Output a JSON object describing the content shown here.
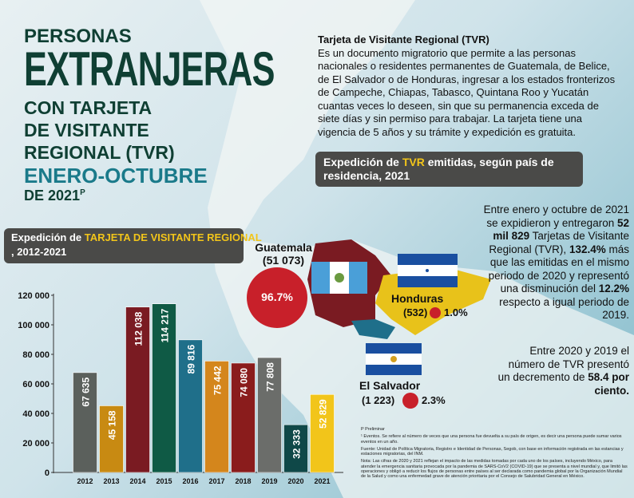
{
  "header": {
    "lines": [
      "PERSONAS",
      "EXTRANJERAS",
      "CON TARJETA",
      "DE VISITANTE",
      "REGIONAL (TVR)",
      "ENERO-OCTUBRE",
      "DE 2021"
    ],
    "superscript": "P"
  },
  "description": {
    "heading": "Tarjeta de Visitante Regional (TVR)",
    "text": "Es un documento migratorio que permite a las personas nacionales o residentes permanentes de Guatemala, de Belice, de El Salvador o de Honduras, ingresar a los estados fronterizos de Campeche, Chiapas, Tabasco, Quintana Roo y Yucatán cuantas veces lo deseen, sin que su permanencia exceda de siete días y sin permiso para trabajar. La tarjeta tiene una vigencia de 5 años y su trámite y expedición es gratuita."
  },
  "country_box": {
    "parts": [
      "Expedición de ",
      "TVR",
      " emitidas, según país de residencia, 2021"
    ]
  },
  "countries": [
    {
      "name": "Guatemala",
      "count": "(51 073)",
      "percent": "96.7%"
    },
    {
      "name": "Honduras",
      "count": "(532)",
      "percent": "1.0%"
    },
    {
      "name": "El Salvador",
      "count": "(1 223)",
      "percent": "2.3%"
    }
  ],
  "stats": {
    "p1": [
      "Entre enero y octubre de 2021 se expidieron y entregaron ",
      "52 mil 829",
      " Tarjetas de Visitante Regional (TVR), ",
      "132.4%",
      " más que las emitidas en el mismo periodo de 2020 y representó una disminución del ",
      "12.2%",
      " respecto a igual periodo de 2019."
    ],
    "p2": [
      "Entre 2020 y 2019 el número de TVR presentó un decremento de ",
      "58.4 por ciento."
    ]
  },
  "footnotes": [
    "P Preliminar",
    "¹ Eventos. Se refiere al número de veces que una persona fue devuelta a su país de origen, es decir una persona puede sumar varios eventos en un año.",
    "Fuente: Unidad de Política Migratoria, Registro e Identidad de Personas, Segob, con base en información registrada en las estancias y estaciones migratorias, del INM.",
    "Nota: Las cifras de 2020 y 2021 reflejan el impacto de las medidas tomadas por cada uno de los países, incluyendo México, para atender la emergencia sanitaria provocada por la pandemia de SARS-CoV2 (COVID-19) que se presenta a nivel mundial y, que limitó las operaciones y obligó a reducir los flujos de personas entre países al ser declarada como pandemia global por la Organización Mundial de la Salud y como una enfermedad grave de atención prioritaria por el Consejo de Salubridad General en México."
  ],
  "chart_data": {
    "type": "bar",
    "title_parts": [
      "Expedición de ",
      "TARJETA DE VISITANTE REGIONAL",
      ", 2012-2021"
    ],
    "categories": [
      "2012",
      "2013",
      "2014",
      "2015",
      "2016",
      "2017",
      "2018",
      "2019",
      "2020",
      "2021"
    ],
    "values": [
      67635,
      45158,
      112038,
      114217,
      89816,
      75442,
      74080,
      77808,
      32333,
      52829
    ],
    "value_labels": [
      "67 635",
      "45 158",
      "112 038",
      "114 217",
      "89 816",
      "75 442",
      "74 080",
      "77 808",
      "32 333",
      "52 829"
    ],
    "colors": [
      "#5b605c",
      "#c88a12",
      "#7a1b22",
      "#0f5a45",
      "#1f6f8a",
      "#d4861c",
      "#8a1c1c",
      "#6b6d6a",
      "#0f4848",
      "#f2c51a"
    ],
    "ylim": [
      0,
      120000
    ],
    "yticks": [
      {
        "value": 0,
        "label": "0"
      },
      {
        "value": 20000,
        "label": "20 000"
      },
      {
        "value": 40000,
        "label": "40 000"
      },
      {
        "value": 60000,
        "label": "60 000"
      },
      {
        "value": 80000,
        "label": "80 000"
      },
      {
        "value": 100000,
        "label": "100 000"
      },
      {
        "value": 120000,
        "label": "120 000"
      }
    ]
  }
}
